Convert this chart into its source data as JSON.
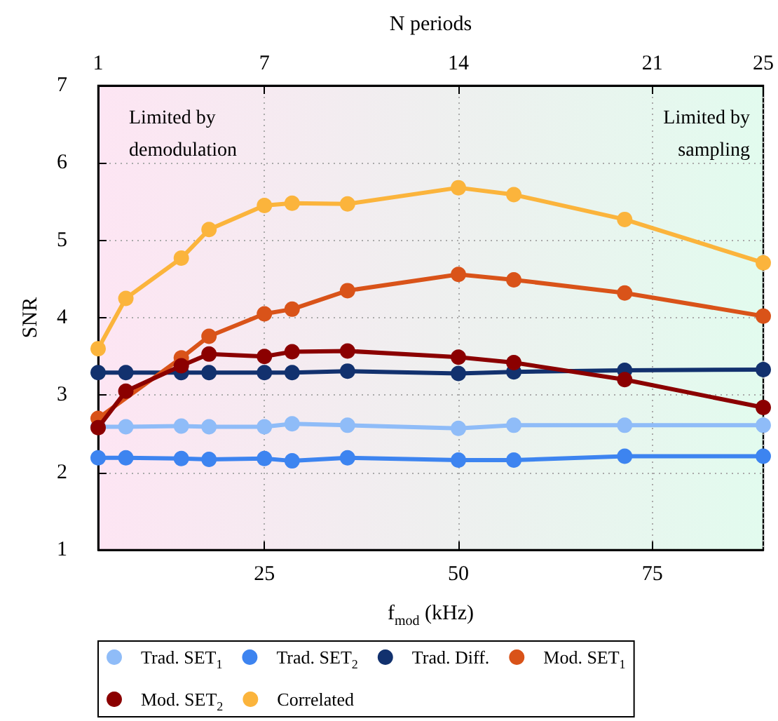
{
  "chart_data": {
    "type": "line",
    "xlabel": "f$_{mod}$ (kHz)",
    "ylabel": "SNR",
    "x2label": "N periods",
    "annotations": [
      "Limited by\ndemodulation",
      "Limited by\nsampling"
    ],
    "x": [
      3.571,
      7.143,
      14.29,
      17.86,
      25,
      28.57,
      35.71,
      50,
      57.14,
      71.43,
      89.29
    ],
    "xlim": [
      3.571,
      89.29
    ],
    "xticks": [
      25,
      50,
      75
    ],
    "x2lim": [
      1,
      25
    ],
    "x2ticks": [
      1,
      7,
      14,
      21,
      25
    ],
    "ylim": [
      1,
      7
    ],
    "yticks": [
      1,
      2,
      3,
      4,
      5,
      6,
      7
    ],
    "grid": true,
    "legend": "bottom",
    "marker": "circle",
    "line_style": "solid",
    "series": [
      {
        "name": "Trad. SET$_{1}$",
        "color": "#8fbcf8",
        "values": [
          2.59,
          2.59,
          2.6,
          2.59,
          2.59,
          2.63,
          2.61,
          2.57,
          2.61,
          2.61,
          2.61
        ]
      },
      {
        "name": "Trad. SET$_{2}$",
        "color": "#3d84f0",
        "values": [
          2.19,
          2.19,
          2.18,
          2.17,
          2.18,
          2.15,
          2.19,
          2.16,
          2.16,
          2.21,
          2.21
        ]
      },
      {
        "name": "Trad. Diff.",
        "color": "#12316e",
        "values": [
          3.29,
          3.29,
          3.29,
          3.29,
          3.29,
          3.29,
          3.31,
          3.28,
          3.3,
          3.32,
          3.33
        ]
      },
      {
        "name": "Mod. SET$_{1}$",
        "color": "#d95319",
        "values": [
          2.7,
          null,
          3.48,
          3.76,
          4.05,
          4.11,
          4.35,
          4.56,
          4.49,
          4.32,
          4.02
        ]
      },
      {
        "name": "Mod. SET$_{2}$",
        "color": "#8b0000",
        "values": [
          2.58,
          3.05,
          3.38,
          3.53,
          3.5,
          3.56,
          3.57,
          3.49,
          3.42,
          3.2,
          2.84
        ]
      },
      {
        "name": "Correlated",
        "color": "#fbb43c",
        "values": [
          3.6,
          4.25,
          4.77,
          5.14,
          5.45,
          5.48,
          5.47,
          5.68,
          5.59,
          5.27,
          4.71
        ]
      }
    ]
  }
}
